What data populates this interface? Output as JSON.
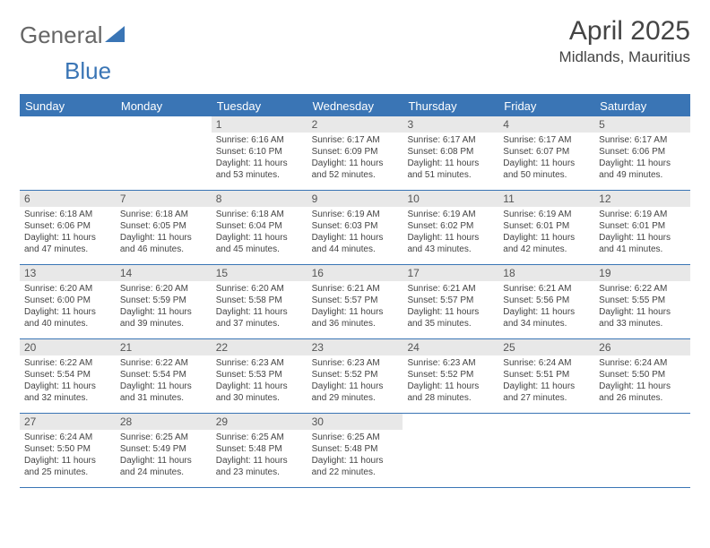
{
  "logo": {
    "text1": "General",
    "text2": "Blue"
  },
  "title": "April 2025",
  "location": "Midlands, Mauritius",
  "colors": {
    "accent": "#3a75b5",
    "header_bg": "#3a75b5",
    "header_text": "#ffffff",
    "daynum_bg": "#e8e8e8",
    "text": "#444444"
  },
  "weekdays": [
    "Sunday",
    "Monday",
    "Tuesday",
    "Wednesday",
    "Thursday",
    "Friday",
    "Saturday"
  ],
  "weeks": [
    [
      {
        "empty": true
      },
      {
        "empty": true
      },
      {
        "num": "1",
        "sunrise": "Sunrise: 6:16 AM",
        "sunset": "Sunset: 6:10 PM",
        "daylight1": "Daylight: 11 hours",
        "daylight2": "and 53 minutes."
      },
      {
        "num": "2",
        "sunrise": "Sunrise: 6:17 AM",
        "sunset": "Sunset: 6:09 PM",
        "daylight1": "Daylight: 11 hours",
        "daylight2": "and 52 minutes."
      },
      {
        "num": "3",
        "sunrise": "Sunrise: 6:17 AM",
        "sunset": "Sunset: 6:08 PM",
        "daylight1": "Daylight: 11 hours",
        "daylight2": "and 51 minutes."
      },
      {
        "num": "4",
        "sunrise": "Sunrise: 6:17 AM",
        "sunset": "Sunset: 6:07 PM",
        "daylight1": "Daylight: 11 hours",
        "daylight2": "and 50 minutes."
      },
      {
        "num": "5",
        "sunrise": "Sunrise: 6:17 AM",
        "sunset": "Sunset: 6:06 PM",
        "daylight1": "Daylight: 11 hours",
        "daylight2": "and 49 minutes."
      }
    ],
    [
      {
        "num": "6",
        "sunrise": "Sunrise: 6:18 AM",
        "sunset": "Sunset: 6:06 PM",
        "daylight1": "Daylight: 11 hours",
        "daylight2": "and 47 minutes."
      },
      {
        "num": "7",
        "sunrise": "Sunrise: 6:18 AM",
        "sunset": "Sunset: 6:05 PM",
        "daylight1": "Daylight: 11 hours",
        "daylight2": "and 46 minutes."
      },
      {
        "num": "8",
        "sunrise": "Sunrise: 6:18 AM",
        "sunset": "Sunset: 6:04 PM",
        "daylight1": "Daylight: 11 hours",
        "daylight2": "and 45 minutes."
      },
      {
        "num": "9",
        "sunrise": "Sunrise: 6:19 AM",
        "sunset": "Sunset: 6:03 PM",
        "daylight1": "Daylight: 11 hours",
        "daylight2": "and 44 minutes."
      },
      {
        "num": "10",
        "sunrise": "Sunrise: 6:19 AM",
        "sunset": "Sunset: 6:02 PM",
        "daylight1": "Daylight: 11 hours",
        "daylight2": "and 43 minutes."
      },
      {
        "num": "11",
        "sunrise": "Sunrise: 6:19 AM",
        "sunset": "Sunset: 6:01 PM",
        "daylight1": "Daylight: 11 hours",
        "daylight2": "and 42 minutes."
      },
      {
        "num": "12",
        "sunrise": "Sunrise: 6:19 AM",
        "sunset": "Sunset: 6:01 PM",
        "daylight1": "Daylight: 11 hours",
        "daylight2": "and 41 minutes."
      }
    ],
    [
      {
        "num": "13",
        "sunrise": "Sunrise: 6:20 AM",
        "sunset": "Sunset: 6:00 PM",
        "daylight1": "Daylight: 11 hours",
        "daylight2": "and 40 minutes."
      },
      {
        "num": "14",
        "sunrise": "Sunrise: 6:20 AM",
        "sunset": "Sunset: 5:59 PM",
        "daylight1": "Daylight: 11 hours",
        "daylight2": "and 39 minutes."
      },
      {
        "num": "15",
        "sunrise": "Sunrise: 6:20 AM",
        "sunset": "Sunset: 5:58 PM",
        "daylight1": "Daylight: 11 hours",
        "daylight2": "and 37 minutes."
      },
      {
        "num": "16",
        "sunrise": "Sunrise: 6:21 AM",
        "sunset": "Sunset: 5:57 PM",
        "daylight1": "Daylight: 11 hours",
        "daylight2": "and 36 minutes."
      },
      {
        "num": "17",
        "sunrise": "Sunrise: 6:21 AM",
        "sunset": "Sunset: 5:57 PM",
        "daylight1": "Daylight: 11 hours",
        "daylight2": "and 35 minutes."
      },
      {
        "num": "18",
        "sunrise": "Sunrise: 6:21 AM",
        "sunset": "Sunset: 5:56 PM",
        "daylight1": "Daylight: 11 hours",
        "daylight2": "and 34 minutes."
      },
      {
        "num": "19",
        "sunrise": "Sunrise: 6:22 AM",
        "sunset": "Sunset: 5:55 PM",
        "daylight1": "Daylight: 11 hours",
        "daylight2": "and 33 minutes."
      }
    ],
    [
      {
        "num": "20",
        "sunrise": "Sunrise: 6:22 AM",
        "sunset": "Sunset: 5:54 PM",
        "daylight1": "Daylight: 11 hours",
        "daylight2": "and 32 minutes."
      },
      {
        "num": "21",
        "sunrise": "Sunrise: 6:22 AM",
        "sunset": "Sunset: 5:54 PM",
        "daylight1": "Daylight: 11 hours",
        "daylight2": "and 31 minutes."
      },
      {
        "num": "22",
        "sunrise": "Sunrise: 6:23 AM",
        "sunset": "Sunset: 5:53 PM",
        "daylight1": "Daylight: 11 hours",
        "daylight2": "and 30 minutes."
      },
      {
        "num": "23",
        "sunrise": "Sunrise: 6:23 AM",
        "sunset": "Sunset: 5:52 PM",
        "daylight1": "Daylight: 11 hours",
        "daylight2": "and 29 minutes."
      },
      {
        "num": "24",
        "sunrise": "Sunrise: 6:23 AM",
        "sunset": "Sunset: 5:52 PM",
        "daylight1": "Daylight: 11 hours",
        "daylight2": "and 28 minutes."
      },
      {
        "num": "25",
        "sunrise": "Sunrise: 6:24 AM",
        "sunset": "Sunset: 5:51 PM",
        "daylight1": "Daylight: 11 hours",
        "daylight2": "and 27 minutes."
      },
      {
        "num": "26",
        "sunrise": "Sunrise: 6:24 AM",
        "sunset": "Sunset: 5:50 PM",
        "daylight1": "Daylight: 11 hours",
        "daylight2": "and 26 minutes."
      }
    ],
    [
      {
        "num": "27",
        "sunrise": "Sunrise: 6:24 AM",
        "sunset": "Sunset: 5:50 PM",
        "daylight1": "Daylight: 11 hours",
        "daylight2": "and 25 minutes."
      },
      {
        "num": "28",
        "sunrise": "Sunrise: 6:25 AM",
        "sunset": "Sunset: 5:49 PM",
        "daylight1": "Daylight: 11 hours",
        "daylight2": "and 24 minutes."
      },
      {
        "num": "29",
        "sunrise": "Sunrise: 6:25 AM",
        "sunset": "Sunset: 5:48 PM",
        "daylight1": "Daylight: 11 hours",
        "daylight2": "and 23 minutes."
      },
      {
        "num": "30",
        "sunrise": "Sunrise: 6:25 AM",
        "sunset": "Sunset: 5:48 PM",
        "daylight1": "Daylight: 11 hours",
        "daylight2": "and 22 minutes."
      },
      {
        "empty": true
      },
      {
        "empty": true
      },
      {
        "empty": true
      }
    ]
  ]
}
